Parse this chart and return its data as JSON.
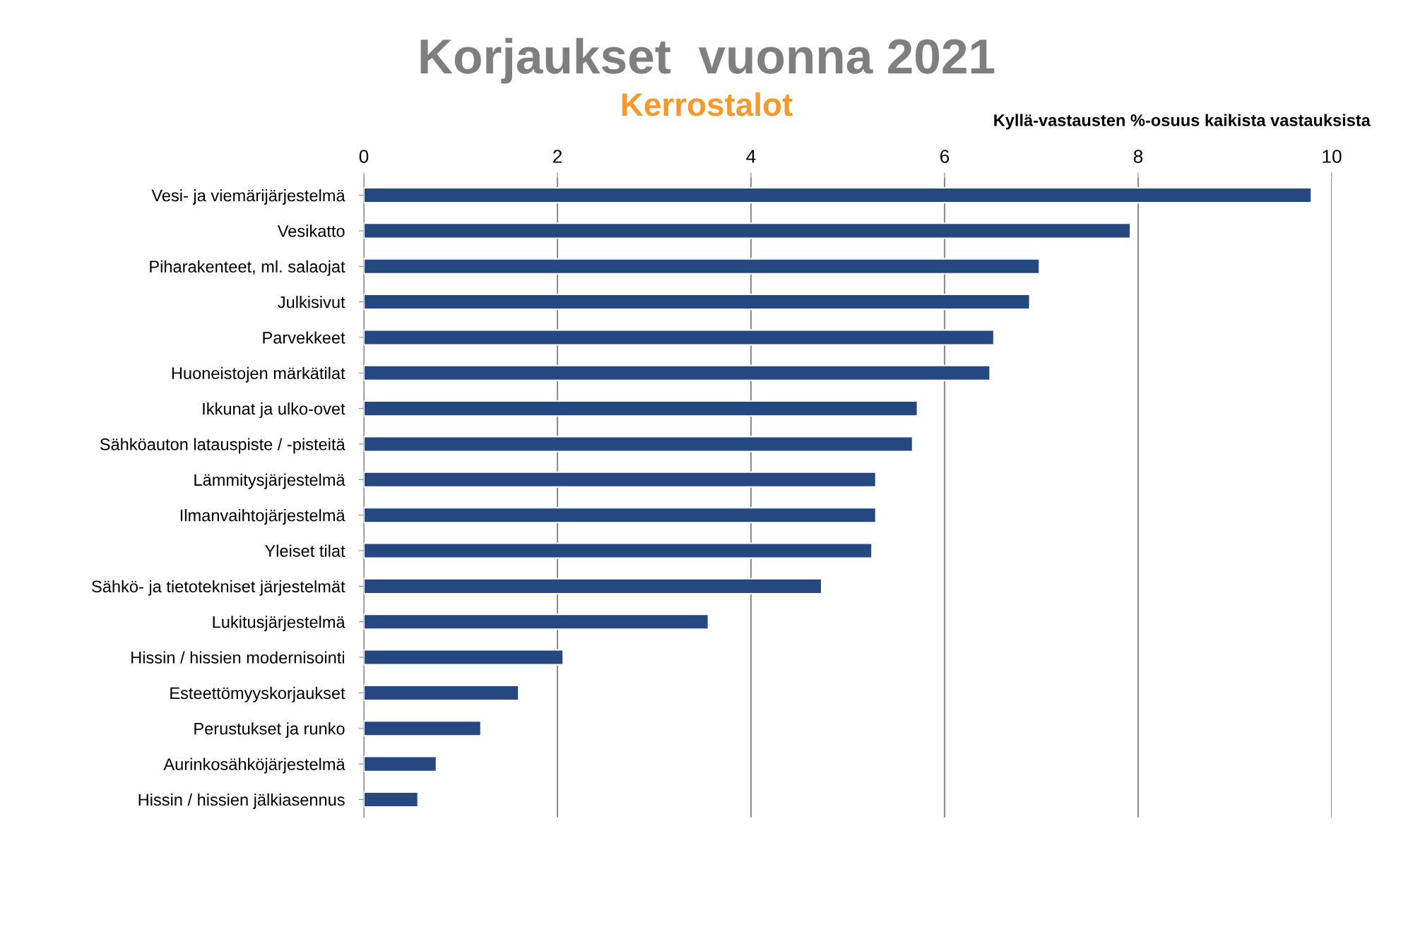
{
  "chart_data": {
    "type": "bar",
    "orientation": "horizontal",
    "title": "Korjaukset  vuonna 2021",
    "subtitle": "Kerrostalot",
    "xlabel": "Kyllä-vastausten %-osuus kaikista vastauksista",
    "categories": [
      "Vesi- ja viemärijärjestelmä",
      "Vesikatto",
      "Piharakenteet, ml. salaojat",
      "Julkisivut",
      "Parvekkeet",
      "Huoneistojen märkätilat",
      "Ikkunat ja ulko-ovet",
      "Sähköauton latauspiste / -pisteitä",
      "Lämmitysjärjestelmä",
      "Ilmanvaihtojärjestelmä",
      "Yleiset tilat",
      "Sähkö- ja tietotekniset järjestelmät",
      "Lukitusjärjestelmä",
      "Hissin / hissien modernisointi",
      "Esteettömyyskorjaukset",
      "Perustukset ja runko",
      "Aurinkosähköjärjestelmä",
      "Hissin / hissien jälkiasennus"
    ],
    "values": [
      9.79,
      7.92,
      6.98,
      6.88,
      6.51,
      6.47,
      5.72,
      5.67,
      5.29,
      5.29,
      5.25,
      4.73,
      3.56,
      2.06,
      1.6,
      1.21,
      0.75,
      0.56
    ],
    "color": "#24487f",
    "xlim": [
      0,
      10
    ],
    "xticks": [
      0,
      2,
      4,
      6,
      8,
      10
    ],
    "grid": "x",
    "legend": false
  }
}
